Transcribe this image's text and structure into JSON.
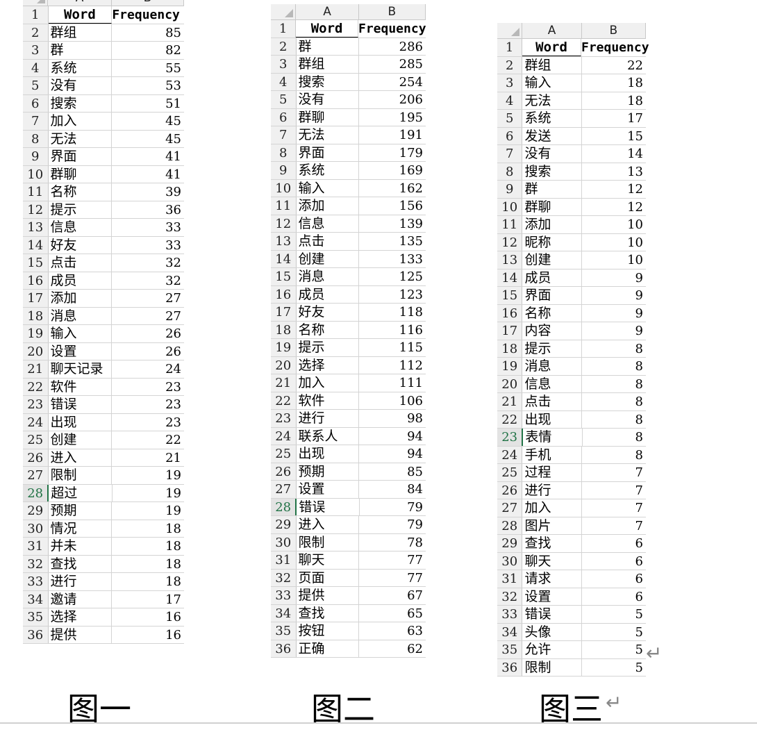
{
  "tables": [
    {
      "col_headers": [
        "A",
        "B"
      ],
      "header": {
        "word": "Word",
        "freq": "Frequency"
      },
      "selected_row": 28,
      "rows": [
        [
          "群组",
          "85"
        ],
        [
          "群",
          "82"
        ],
        [
          "系统",
          "55"
        ],
        [
          "没有",
          "53"
        ],
        [
          "搜索",
          "51"
        ],
        [
          "加入",
          "45"
        ],
        [
          "无法",
          "45"
        ],
        [
          "界面",
          "41"
        ],
        [
          "群聊",
          "41"
        ],
        [
          "名称",
          "39"
        ],
        [
          "提示",
          "36"
        ],
        [
          "信息",
          "33"
        ],
        [
          "好友",
          "33"
        ],
        [
          "点击",
          "32"
        ],
        [
          "成员",
          "32"
        ],
        [
          "添加",
          "27"
        ],
        [
          "消息",
          "27"
        ],
        [
          "输入",
          "26"
        ],
        [
          "设置",
          "26"
        ],
        [
          "聊天记录",
          "24"
        ],
        [
          "软件",
          "23"
        ],
        [
          "错误",
          "23"
        ],
        [
          "出现",
          "23"
        ],
        [
          "创建",
          "22"
        ],
        [
          "进入",
          "21"
        ],
        [
          "限制",
          "19"
        ],
        [
          "超过",
          "19"
        ],
        [
          "预期",
          "19"
        ],
        [
          "情况",
          "18"
        ],
        [
          "并未",
          "18"
        ],
        [
          "查找",
          "18"
        ],
        [
          "进行",
          "18"
        ],
        [
          "邀请",
          "17"
        ],
        [
          "选择",
          "16"
        ],
        [
          "提供",
          "16"
        ]
      ]
    },
    {
      "col_headers": [
        "A",
        "B"
      ],
      "header": {
        "word": "Word",
        "freq": "Frequency"
      },
      "selected_row": 28,
      "rows": [
        [
          "群",
          "286"
        ],
        [
          "群组",
          "285"
        ],
        [
          "搜索",
          "254"
        ],
        [
          "没有",
          "206"
        ],
        [
          "群聊",
          "195"
        ],
        [
          "无法",
          "191"
        ],
        [
          "界面",
          "179"
        ],
        [
          "系统",
          "169"
        ],
        [
          "输入",
          "162"
        ],
        [
          "添加",
          "156"
        ],
        [
          "信息",
          "139"
        ],
        [
          "点击",
          "135"
        ],
        [
          "创建",
          "133"
        ],
        [
          "消息",
          "125"
        ],
        [
          "成员",
          "123"
        ],
        [
          "好友",
          "118"
        ],
        [
          "名称",
          "116"
        ],
        [
          "提示",
          "115"
        ],
        [
          "选择",
          "112"
        ],
        [
          "加入",
          "111"
        ],
        [
          "软件",
          "106"
        ],
        [
          "进行",
          "98"
        ],
        [
          "联系人",
          "94"
        ],
        [
          "出现",
          "94"
        ],
        [
          "预期",
          "85"
        ],
        [
          "设置",
          "84"
        ],
        [
          "错误",
          "79"
        ],
        [
          "进入",
          "79"
        ],
        [
          "限制",
          "78"
        ],
        [
          "聊天",
          "77"
        ],
        [
          "页面",
          "77"
        ],
        [
          "提供",
          "67"
        ],
        [
          "查找",
          "65"
        ],
        [
          "按钮",
          "63"
        ],
        [
          "正确",
          "62"
        ]
      ]
    },
    {
      "col_headers": [
        "A",
        "B"
      ],
      "header": {
        "word": "Word",
        "freq": "Frequency"
      },
      "selected_row": 23,
      "rows": [
        [
          "群组",
          "22"
        ],
        [
          "输入",
          "18"
        ],
        [
          "无法",
          "18"
        ],
        [
          "系统",
          "17"
        ],
        [
          "发送",
          "15"
        ],
        [
          "没有",
          "14"
        ],
        [
          "搜索",
          "13"
        ],
        [
          "群",
          "12"
        ],
        [
          "群聊",
          "12"
        ],
        [
          "添加",
          "10"
        ],
        [
          "昵称",
          "10"
        ],
        [
          "创建",
          "10"
        ],
        [
          "成员",
          "9"
        ],
        [
          "界面",
          "9"
        ],
        [
          "名称",
          "9"
        ],
        [
          "内容",
          "9"
        ],
        [
          "提示",
          "8"
        ],
        [
          "消息",
          "8"
        ],
        [
          "信息",
          "8"
        ],
        [
          "点击",
          "8"
        ],
        [
          "出现",
          "8"
        ],
        [
          "表情",
          "8"
        ],
        [
          "手机",
          "8"
        ],
        [
          "过程",
          "7"
        ],
        [
          "进行",
          "7"
        ],
        [
          "加入",
          "7"
        ],
        [
          "图片",
          "7"
        ],
        [
          "查找",
          "6"
        ],
        [
          "聊天",
          "6"
        ],
        [
          "请求",
          "6"
        ],
        [
          "设置",
          "6"
        ],
        [
          "错误",
          "5"
        ],
        [
          "头像",
          "5"
        ],
        [
          "允许",
          "5"
        ],
        [
          "限制",
          "5"
        ]
      ]
    }
  ],
  "captions": [
    "图一",
    "图二",
    "图三"
  ],
  "return_mark": "↵"
}
